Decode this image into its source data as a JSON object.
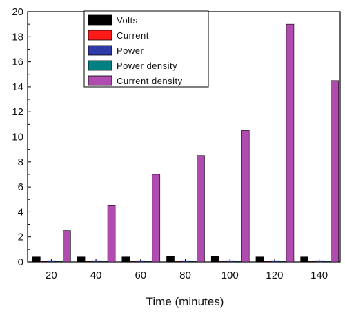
{
  "chart_data": {
    "type": "bar",
    "title": "",
    "xlabel": "Time (minutes)",
    "ylabel": "",
    "ylim": [
      0,
      20
    ],
    "yticks": [
      0,
      2,
      4,
      6,
      8,
      10,
      12,
      14,
      16,
      18,
      20
    ],
    "categories": [
      "20",
      "40",
      "60",
      "80",
      "100",
      "120",
      "140"
    ],
    "legend_position": "top-center",
    "grid": false,
    "series": [
      {
        "name": "Volts",
        "color": "#000000",
        "values": [
          0.4,
          0.4,
          0.4,
          0.45,
          0.45,
          0.4,
          0.4
        ]
      },
      {
        "name": "Current",
        "color": "#ff1a1a",
        "values": [
          0.02,
          0.02,
          0.02,
          0.02,
          0.02,
          0.02,
          0.02
        ]
      },
      {
        "name": "Power",
        "color": "#2e3aa8",
        "values": [
          0.1,
          0.1,
          0.1,
          0.1,
          0.1,
          0.1,
          0.1
        ]
      },
      {
        "name": "Power density",
        "color": "#008080",
        "values": [
          0.05,
          0.05,
          0.05,
          0.05,
          0.05,
          0.05,
          0.05
        ]
      },
      {
        "name": "Current density",
        "color": "#b04cb0",
        "values": [
          2.5,
          4.5,
          7.0,
          8.5,
          10.5,
          19.0,
          14.5
        ]
      }
    ]
  }
}
